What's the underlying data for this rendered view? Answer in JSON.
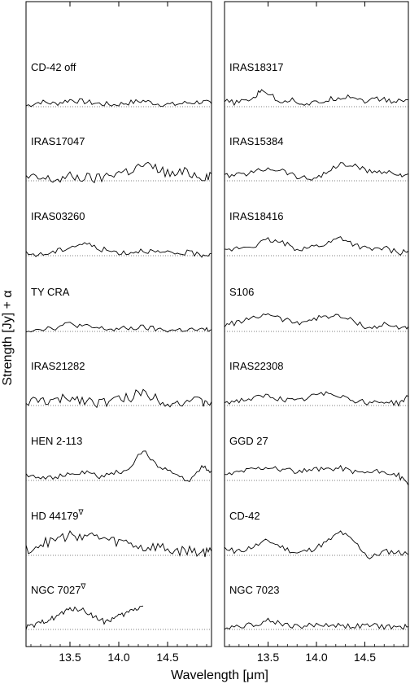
{
  "figure": {
    "xlabel": "Wavelength [μm]",
    "ylabel": "Strength [Jy] + α"
  },
  "chart_data": [
    {
      "type": "line",
      "panel": "left",
      "xlim": [
        13.05,
        14.95
      ],
      "xticks": [
        13.5,
        14.0,
        14.5
      ],
      "xtick_labels": [
        "13.5",
        "14.0",
        "14.5"
      ],
      "baseline": "dotted",
      "series": [
        {
          "name": "CD-42 off",
          "x": [
            13.05,
            13.2,
            13.35,
            13.5,
            13.65,
            13.8,
            13.95,
            14.1,
            14.25,
            14.4,
            14.55,
            14.7,
            14.85,
            14.95
          ],
          "y": [
            0.1,
            0.5,
            0.3,
            0.7,
            0.5,
            0.3,
            0.2,
            0.4,
            0.6,
            0.3,
            0.2,
            0.4,
            0.5,
            0.3
          ]
        },
        {
          "name": "IRAS17047",
          "x": [
            13.05,
            13.2,
            13.35,
            13.5,
            13.65,
            13.8,
            13.95,
            14.1,
            14.25,
            14.4,
            14.55,
            14.7,
            14.85,
            14.95
          ],
          "y": [
            0.3,
            0.2,
            0.1,
            0.4,
            0.3,
            0.2,
            0.8,
            1.0,
            1.6,
            1.2,
            0.6,
            0.9,
            0.4,
            0.7
          ]
        },
        {
          "name": "IRAS03260",
          "x": [
            13.05,
            13.2,
            13.35,
            13.5,
            13.65,
            13.8,
            13.95,
            14.1,
            14.25,
            14.4,
            14.55,
            14.7,
            14.85,
            14.95
          ],
          "y": [
            0.2,
            0.1,
            0.4,
            0.9,
            1.3,
            0.7,
            0.4,
            0.3,
            0.6,
            0.3,
            0.2,
            0.3,
            0.1,
            0.2
          ]
        },
        {
          "name": "TY CRA",
          "x": [
            13.05,
            13.2,
            13.35,
            13.5,
            13.65,
            13.8,
            13.95,
            14.1,
            14.25,
            14.4,
            14.55,
            14.7,
            14.85,
            14.95
          ],
          "y": [
            0.1,
            0.3,
            0.4,
            0.8,
            0.5,
            0.3,
            0.2,
            0.3,
            0.4,
            0.2,
            0.1,
            0.2,
            0.1,
            0.2
          ]
        },
        {
          "name": "IRAS21282",
          "x": [
            13.05,
            13.2,
            13.35,
            13.5,
            13.65,
            13.8,
            13.95,
            14.1,
            14.25,
            14.4,
            14.55,
            14.7,
            14.85,
            14.95
          ],
          "y": [
            0.3,
            0.5,
            0.4,
            0.8,
            0.6,
            0.3,
            0.5,
            0.8,
            1.4,
            0.7,
            0.2,
            0.5,
            0.3,
            0.4
          ]
        },
        {
          "name": "HEN 2-113",
          "x": [
            13.05,
            13.2,
            13.35,
            13.5,
            13.65,
            13.8,
            13.95,
            14.1,
            14.25,
            14.4,
            14.55,
            14.7,
            14.85,
            14.95
          ],
          "y": [
            0.6,
            0.4,
            0.3,
            0.6,
            0.8,
            0.4,
            0.7,
            1.2,
            3.0,
            1.6,
            0.8,
            -0.2,
            1.4,
            1.0
          ]
        },
        {
          "name": "HD 44179",
          "x": [
            13.05,
            13.2,
            13.35,
            13.5,
            13.65,
            13.8,
            13.95,
            14.1,
            14.25,
            14.4,
            14.55,
            14.7,
            14.85,
            14.95
          ],
          "y": [
            0.6,
            1.1,
            1.6,
            2.0,
            2.1,
            1.8,
            1.4,
            1.3,
            0.7,
            0.9,
            0.4,
            0.5,
            0.3,
            0.4
          ]
        },
        {
          "name": "NGC 7027",
          "x": [
            13.05,
            13.15,
            13.25,
            13.35,
            13.45,
            13.55,
            13.65,
            13.75,
            13.85,
            13.95,
            14.05,
            14.15,
            14.25
          ],
          "y": [
            0.2,
            0.4,
            0.9,
            1.3,
            1.8,
            2.2,
            1.9,
            1.3,
            0.8,
            1.1,
            1.5,
            2.0,
            2.4
          ]
        }
      ]
    },
    {
      "type": "line",
      "panel": "right",
      "xlim": [
        13.05,
        14.95
      ],
      "xticks": [
        13.5,
        14.0,
        14.5
      ],
      "xtick_labels": [
        "13.5",
        "14.0",
        "14.5"
      ],
      "baseline": "dotted",
      "series": [
        {
          "name": "IRAS18317",
          "x": [
            13.05,
            13.2,
            13.35,
            13.45,
            13.6,
            13.75,
            13.9,
            14.05,
            14.2,
            14.35,
            14.5,
            14.65,
            14.8,
            14.95
          ],
          "y": [
            0.5,
            0.4,
            0.9,
            1.8,
            0.6,
            0.7,
            0.2,
            0.5,
            0.9,
            1.1,
            0.6,
            0.8,
            0.5,
            0.7
          ]
        },
        {
          "name": "IRAS15384",
          "x": [
            13.05,
            13.2,
            13.35,
            13.5,
            13.65,
            13.8,
            13.95,
            14.1,
            14.25,
            14.4,
            14.55,
            14.7,
            14.85,
            14.95
          ],
          "y": [
            0.5,
            0.6,
            0.9,
            1.3,
            1.1,
            0.4,
            0.2,
            0.8,
            1.7,
            1.5,
            0.9,
            1.0,
            0.6,
            0.7
          ]
        },
        {
          "name": "IRAS18416",
          "x": [
            13.05,
            13.2,
            13.35,
            13.5,
            13.65,
            13.8,
            13.95,
            14.1,
            14.25,
            14.4,
            14.55,
            14.7,
            14.85,
            14.95
          ],
          "y": [
            0.4,
            0.8,
            1.0,
            1.6,
            1.3,
            0.7,
            0.9,
            1.2,
            1.9,
            1.1,
            0.6,
            0.8,
            0.3,
            0.5
          ]
        },
        {
          "name": "S106",
          "x": [
            13.05,
            13.2,
            13.35,
            13.5,
            13.65,
            13.8,
            13.95,
            14.1,
            14.25,
            14.4,
            14.55,
            14.7,
            14.85,
            14.95
          ],
          "y": [
            0.6,
            1.0,
            1.3,
            1.9,
            1.2,
            0.9,
            1.2,
            1.6,
            1.5,
            1.0,
            0.3,
            0.7,
            0.4,
            0.5
          ]
        },
        {
          "name": "IRAS22308",
          "x": [
            13.05,
            13.2,
            13.35,
            13.5,
            13.65,
            13.8,
            13.95,
            14.1,
            14.25,
            14.4,
            14.55,
            14.7,
            14.85,
            14.95
          ],
          "y": [
            0.3,
            0.5,
            0.7,
            1.0,
            0.6,
            0.4,
            0.9,
            1.4,
            1.0,
            0.5,
            0.3,
            0.4,
            0.2,
            0.9
          ]
        },
        {
          "name": "GGD 27",
          "x": [
            13.05,
            13.2,
            13.35,
            13.5,
            13.65,
            13.8,
            13.95,
            14.1,
            14.25,
            14.4,
            14.55,
            14.7,
            14.85,
            14.95
          ],
          "y": [
            0.5,
            0.9,
            1.2,
            1.4,
            1.1,
            0.9,
            1.0,
            1.2,
            1.3,
            0.9,
            0.8,
            0.9,
            0.5,
            -0.5
          ]
        },
        {
          "name": "CD-42",
          "x": [
            13.05,
            13.2,
            13.35,
            13.5,
            13.65,
            13.8,
            13.95,
            14.1,
            14.25,
            14.4,
            14.55,
            14.7,
            14.85,
            14.95
          ],
          "y": [
            0.6,
            0.4,
            0.9,
            1.5,
            0.8,
            0.2,
            0.6,
            1.3,
            2.4,
            1.3,
            -0.3,
            0.4,
            0.3,
            0.1
          ]
        },
        {
          "name": "NGC 7023",
          "x": [
            13.05,
            13.2,
            13.35,
            13.5,
            13.65,
            13.8,
            13.95,
            14.1,
            14.25,
            14.4,
            14.55,
            14.7,
            14.85,
            14.95
          ],
          "y": [
            0.2,
            0.4,
            0.5,
            0.9,
            0.6,
            0.3,
            0.4,
            0.5,
            0.4,
            0.3,
            0.4,
            0.3,
            0.2,
            0.3
          ]
        }
      ]
    }
  ],
  "labels": {
    "left": [
      "CD-42 off",
      "IRAS17047",
      "IRAS03260",
      "TY CRA",
      "IRAS21282",
      "HEN 2-113",
      "HD 44179",
      "NGC 7027"
    ],
    "right": [
      "IRAS18317",
      "IRAS15384",
      "IRAS18416",
      "S106",
      "IRAS22308",
      "GGD 27",
      "CD-42",
      "NGC 7023"
    ],
    "superscripts": {
      "HD 44179": "∇",
      "NGC 7027": "∇"
    }
  }
}
